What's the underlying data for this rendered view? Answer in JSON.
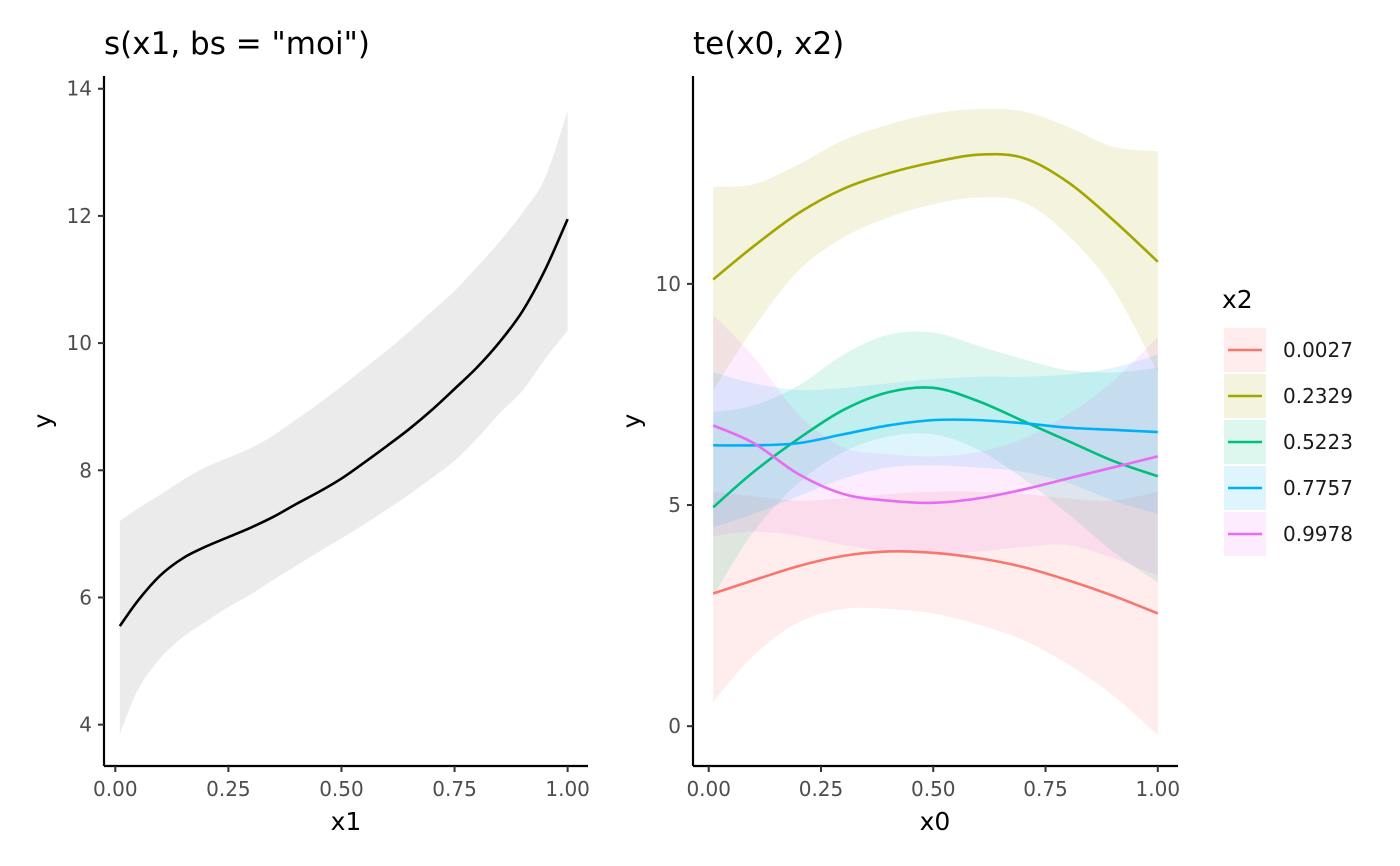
{
  "chart_data": [
    {
      "type": "line",
      "title": "s(x1, bs = \"moi\")",
      "xlabel": "x1",
      "ylabel": "y",
      "xlim": [
        -0.025,
        1.045
      ],
      "ylim": [
        3.35,
        14.2
      ],
      "xticks": [
        0.0,
        0.25,
        0.5,
        0.75,
        1.0
      ],
      "xtick_labels": [
        "0.00",
        "0.25",
        "0.50",
        "0.75",
        "1.00"
      ],
      "yticks": [
        4,
        6,
        8,
        10,
        12,
        14
      ],
      "ytick_labels": [
        "4",
        "6",
        "8",
        "10",
        "12",
        "14"
      ],
      "grid": false,
      "series": [
        {
          "line_color": "#000000",
          "band_color": "#ebebeb",
          "x": [
            0.01,
            0.05,
            0.1,
            0.15,
            0.2,
            0.25,
            0.3,
            0.35,
            0.4,
            0.45,
            0.5,
            0.55,
            0.6,
            0.65,
            0.7,
            0.75,
            0.8,
            0.85,
            0.9,
            0.95,
            1.0
          ],
          "y": [
            5.55,
            5.95,
            6.35,
            6.62,
            6.8,
            6.95,
            7.1,
            7.27,
            7.47,
            7.66,
            7.87,
            8.12,
            8.38,
            8.65,
            8.95,
            9.28,
            9.62,
            10.02,
            10.5,
            11.15,
            11.95
          ],
          "lower": [
            3.85,
            4.55,
            5.05,
            5.38,
            5.62,
            5.85,
            6.05,
            6.28,
            6.5,
            6.72,
            6.93,
            7.15,
            7.38,
            7.62,
            7.88,
            8.15,
            8.5,
            8.9,
            9.25,
            9.75,
            10.2
          ],
          "upper": [
            7.2,
            7.4,
            7.62,
            7.85,
            8.05,
            8.2,
            8.35,
            8.55,
            8.8,
            9.05,
            9.32,
            9.6,
            9.88,
            10.18,
            10.5,
            10.82,
            11.2,
            11.6,
            12.05,
            12.6,
            13.65
          ]
        }
      ]
    },
    {
      "type": "line",
      "title": "te(x0, x2)",
      "xlabel": "x0",
      "ylabel": "y",
      "xlim": [
        -0.035,
        1.045
      ],
      "ylim": [
        -0.9,
        14.7
      ],
      "xticks": [
        0.0,
        0.25,
        0.5,
        0.75,
        1.0
      ],
      "xtick_labels": [
        "0.00",
        "0.25",
        "0.50",
        "0.75",
        "1.00"
      ],
      "yticks": [
        0,
        5,
        10
      ],
      "ytick_labels": [
        "0",
        "5",
        "10"
      ],
      "grid": false,
      "legend": {
        "title": "x2",
        "position": "right"
      },
      "x": [
        0.01,
        0.1,
        0.2,
        0.3,
        0.4,
        0.5,
        0.6,
        0.7,
        0.8,
        0.9,
        1.0
      ],
      "series": [
        {
          "name": "0.0027",
          "color": "#f8766d",
          "y": [
            3.0,
            3.3,
            3.62,
            3.85,
            3.95,
            3.92,
            3.8,
            3.6,
            3.3,
            2.95,
            2.55
          ],
          "lower": [
            0.55,
            1.6,
            2.35,
            2.65,
            2.65,
            2.55,
            2.3,
            1.95,
            1.4,
            0.7,
            -0.2
          ],
          "upper": [
            5.3,
            5.2,
            5.1,
            5.15,
            5.25,
            5.3,
            5.3,
            5.25,
            5.15,
            5.1,
            5.3
          ]
        },
        {
          "name": "0.2329",
          "color": "#a3a500",
          "y": [
            10.1,
            10.85,
            11.6,
            12.15,
            12.5,
            12.75,
            12.92,
            12.85,
            12.3,
            11.45,
            10.5
          ],
          "lower": [
            7.6,
            9.0,
            10.3,
            11.05,
            11.5,
            11.8,
            11.95,
            11.85,
            11.1,
            9.9,
            8.0
          ],
          "upper": [
            12.2,
            12.25,
            12.7,
            13.25,
            13.6,
            13.85,
            13.95,
            13.9,
            13.55,
            13.1,
            13.0
          ]
        },
        {
          "name": "0.5223",
          "color": "#00bf7d",
          "y": [
            4.95,
            5.75,
            6.5,
            7.15,
            7.55,
            7.65,
            7.35,
            6.9,
            6.45,
            6.0,
            5.65
          ],
          "lower": [
            2.95,
            4.4,
            5.5,
            6.2,
            6.55,
            6.6,
            6.25,
            5.6,
            4.8,
            3.95,
            3.25
          ],
          "upper": [
            7.1,
            7.25,
            7.7,
            8.4,
            8.85,
            8.9,
            8.6,
            8.3,
            8.05,
            8.0,
            8.1
          ]
        },
        {
          "name": "0.7757",
          "color": "#00b0f6",
          "y": [
            6.35,
            6.35,
            6.4,
            6.6,
            6.8,
            6.92,
            6.92,
            6.85,
            6.75,
            6.7,
            6.65
          ],
          "lower": [
            4.5,
            4.8,
            5.2,
            5.6,
            5.85,
            5.9,
            5.85,
            5.75,
            5.5,
            5.1,
            4.8
          ],
          "upper": [
            8.0,
            7.75,
            7.6,
            7.65,
            7.75,
            7.85,
            7.9,
            7.9,
            7.95,
            8.1,
            8.4
          ]
        },
        {
          "name": "0.9978",
          "color": "#e76bf3",
          "y": [
            6.8,
            6.4,
            5.7,
            5.25,
            5.1,
            5.05,
            5.15,
            5.35,
            5.6,
            5.85,
            6.1
          ],
          "lower": [
            4.3,
            4.4,
            4.3,
            4.1,
            3.95,
            3.9,
            3.95,
            4.05,
            4.1,
            3.8,
            3.4
          ],
          "upper": [
            9.3,
            8.35,
            7.05,
            6.3,
            6.15,
            6.1,
            6.2,
            6.5,
            7.05,
            7.8,
            8.8
          ]
        }
      ]
    }
  ]
}
